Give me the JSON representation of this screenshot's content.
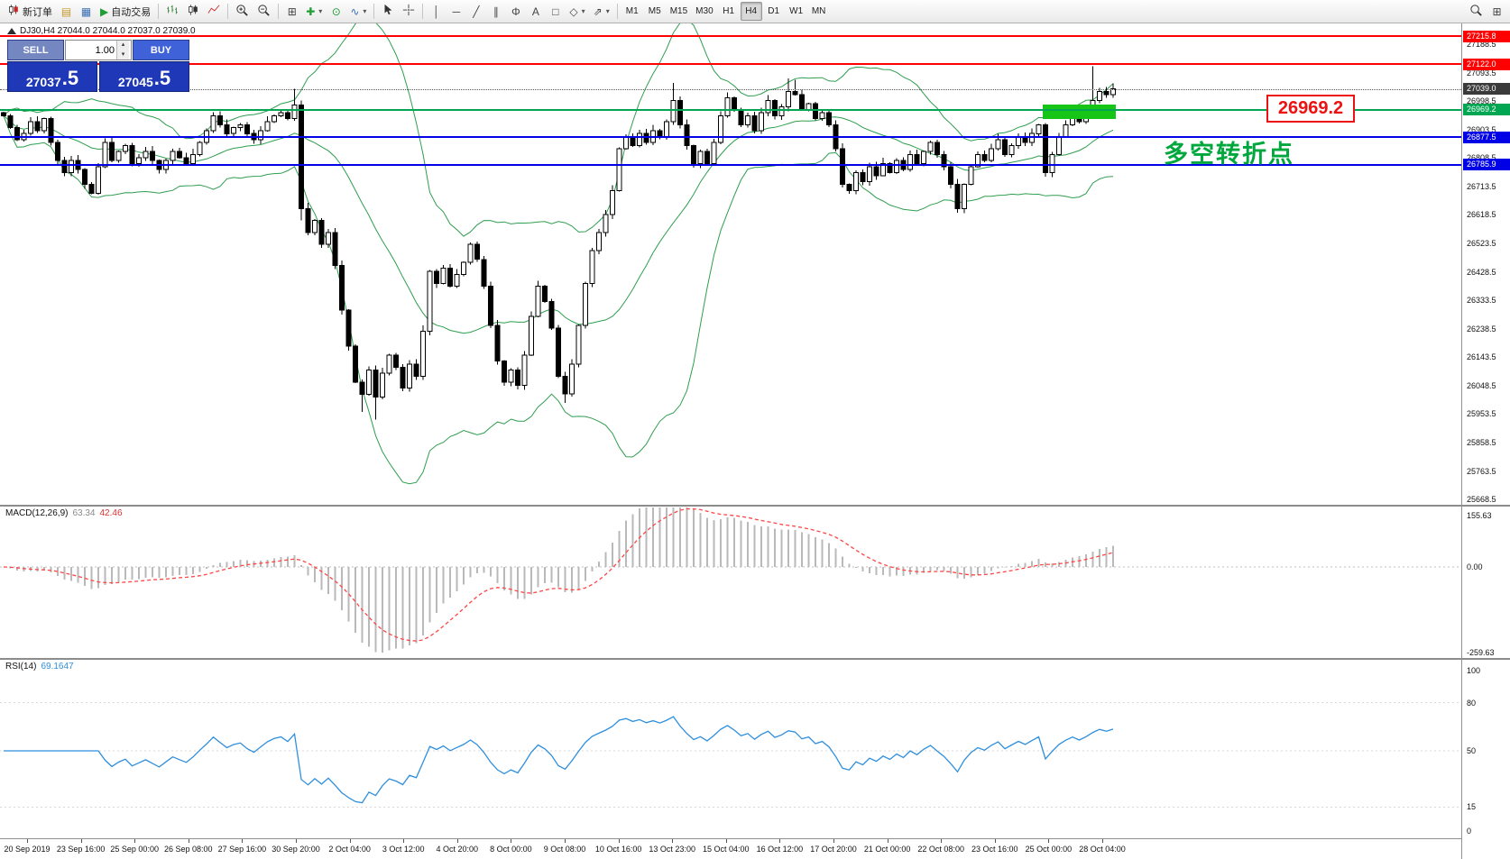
{
  "toolbar": {
    "new_order_label": "新订单",
    "autotrading_label": "自动交易",
    "timeframes": {
      "items": [
        "M1",
        "M5",
        "M15",
        "M30",
        "H1",
        "H4",
        "D1",
        "W1",
        "MN"
      ],
      "active": "H4"
    }
  },
  "icons": {
    "profiles": "▤",
    "data_window": "▦",
    "autotrading_play": "▶",
    "tile_windows": "⊞",
    "add_indicator": "✚",
    "period_clock": "⊙",
    "template_wave": "∿",
    "dropdown_caret": "▾",
    "spin_up": "▴",
    "spin_down": "▾",
    "vertical_line": "│",
    "horizontal_line": "─",
    "trendline": "╱",
    "channel": "∥",
    "fibonacci": "Φ",
    "text_tool": "A",
    "label_tool": "□",
    "shapes": "◇",
    "arrow_tool": "⇗"
  },
  "trade_panel": {
    "sell_label": "SELL",
    "buy_label": "BUY",
    "volume": "1.00",
    "sell_price_main": "27037",
    "sell_price_pips": ".5",
    "buy_price_main": "27045",
    "buy_price_pips": ".5"
  },
  "chart": {
    "symbol_label": "DJ30,H4 27044.0 27044.0 27037.0 27039.0",
    "annotation_text": "多空转折点",
    "price_box_label": "26969.2",
    "current_price": {
      "value": 27039.0,
      "label": "27039.0",
      "color": "#3a3a3a"
    },
    "levels": [
      {
        "value": 27215.8,
        "label": "27215.8",
        "color": "#ff0000"
      },
      {
        "value": 27122.0,
        "label": "27122.0",
        "color": "#ff0000"
      },
      {
        "value": 26969.2,
        "label": "26969.2",
        "color": "#00a651"
      },
      {
        "value": 26877.5,
        "label": "26877.5",
        "color": "#0000e6"
      },
      {
        "value": 26785.9,
        "label": "26785.9",
        "color": "#0000e6"
      }
    ],
    "scale_ticks": [
      27188.5,
      27093.5,
      26998.5,
      26903.5,
      26808.5,
      26713.5,
      26618.5,
      26523.5,
      26428.5,
      26333.5,
      26238.5,
      26143.5,
      26048.5,
      25953.5,
      25858.5,
      25763.5,
      25668.5
    ],
    "entry_zone": {
      "price_top": 26988,
      "price_bottom": 26938,
      "bar_start": 154,
      "bar_end": 164,
      "color": "#17c517"
    }
  },
  "macd_panel": {
    "name": "MACD(12,26,9)",
    "main_value": "63.34",
    "signal_value": "42.46",
    "scale": [
      "155.63",
      "0.00",
      "-259.63"
    ],
    "histogram_color": "#b9b9b9",
    "signal_color": "#ff4444"
  },
  "rsi_panel": {
    "name": "RSI(14)",
    "value": "69.1647",
    "scale": [
      "100",
      "80",
      "50",
      "15",
      "0"
    ],
    "line_color": "#2f8fdd",
    "levels": [
      80,
      50,
      15
    ]
  },
  "chart_data": {
    "type": "candlestick",
    "symbol": "DJ30",
    "timeframe": "H4",
    "x_labels": [
      "20 Sep 2019",
      "23 Sep 16:00",
      "25 Sep 00:00",
      "26 Sep 08:00",
      "27 Sep 16:00",
      "30 Sep 20:00",
      "2 Oct 04:00",
      "3 Oct 12:00",
      "4 Oct 20:00",
      "8 Oct 00:00",
      "9 Oct 08:00",
      "10 Oct 16:00",
      "13 Oct 23:00",
      "15 Oct 04:00",
      "16 Oct 12:00",
      "17 Oct 20:00",
      "21 Oct 00:00",
      "22 Oct 08:00",
      "23 Oct 16:00",
      "25 Oct 00:00",
      "28 Oct 04:00"
    ],
    "first_open": 26960,
    "closes": [
      26950,
      26910,
      26870,
      26890,
      26930,
      26900,
      26940,
      26860,
      26800,
      26760,
      26800,
      26770,
      26720,
      26690,
      26780,
      26860,
      26800,
      26830,
      26850,
      26790,
      26810,
      26830,
      26800,
      26770,
      26800,
      26830,
      26810,
      26790,
      26820,
      26860,
      26900,
      26950,
      26920,
      26890,
      26910,
      26920,
      26890,
      26870,
      26900,
      26930,
      26950,
      26960,
      26940,
      26985,
      26640,
      26560,
      26600,
      26520,
      26560,
      26450,
      26300,
      26180,
      26060,
      26020,
      26100,
      26010,
      26090,
      26150,
      26110,
      26040,
      26120,
      26080,
      26230,
      26430,
      26390,
      26440,
      26380,
      26420,
      26460,
      26520,
      26470,
      26380,
      26250,
      26130,
      26060,
      26100,
      26050,
      26150,
      26280,
      26380,
      26330,
      26240,
      26080,
      26020,
      26120,
      26250,
      26390,
      26500,
      26560,
      26620,
      26700,
      26840,
      26880,
      26850,
      26890,
      26860,
      26900,
      26880,
      26930,
      27000,
      26920,
      26850,
      26790,
      26830,
      26790,
      26860,
      26950,
      27010,
      26970,
      26920,
      26950,
      26900,
      26960,
      27000,
      26950,
      26980,
      27030,
      27020,
      26970,
      26990,
      26940,
      26960,
      26920,
      26840,
      26720,
      26700,
      26760,
      26730,
      26780,
      26750,
      26790,
      26760,
      26800,
      26770,
      26820,
      26790,
      26830,
      26860,
      26820,
      26780,
      26720,
      26640,
      26720,
      26780,
      26820,
      26800,
      26840,
      26870,
      26820,
      26850,
      26880,
      26860,
      26890,
      26920,
      26760,
      26820,
      26880,
      26920,
      26950,
      26930,
      26960,
      27000,
      27030,
      27020,
      27039
    ],
    "wick_overrides": {
      "43": {
        "high": 27040
      },
      "44": {
        "low": 26600
      },
      "53": {
        "low": 25960
      },
      "55": {
        "low": 25935
      },
      "83": {
        "low": 25990
      },
      "99": {
        "high": 27060
      },
      "116": {
        "high": 27075
      },
      "117": {
        "high": 27070
      },
      "161": {
        "high": 27115
      }
    },
    "candle_colors": {
      "bull": "#ffffff",
      "bear": "#000000",
      "outline": "#000000"
    },
    "indicators": [
      {
        "name": "Bollinger Bands",
        "period": 20,
        "deviation": 2,
        "color": "#2f9e4f"
      },
      {
        "name": "MACD",
        "fast": 12,
        "slow": 26,
        "signal": 9
      },
      {
        "name": "RSI",
        "period": 14
      }
    ]
  }
}
